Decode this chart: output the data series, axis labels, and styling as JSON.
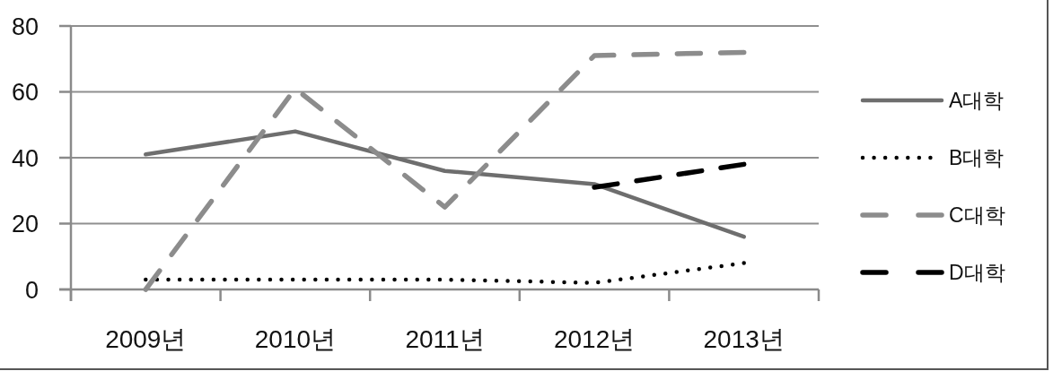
{
  "chart_data": {
    "type": "line",
    "categories": [
      "2009년",
      "2010년",
      "2011년",
      "2012년",
      "2013년"
    ],
    "series": [
      {
        "name": "A대학",
        "color": "#6e6e6e",
        "line_style": "solid",
        "values": [
          41,
          48,
          36,
          32,
          16
        ]
      },
      {
        "name": "B대학",
        "color": "#000000",
        "line_style": "dotted",
        "values": [
          3,
          3,
          3,
          2,
          8
        ]
      },
      {
        "name": "C대학",
        "color": "#8c8c8c",
        "line_style": "dashed",
        "values": [
          0,
          61,
          25,
          71,
          72
        ]
      },
      {
        "name": "D대학",
        "color": "#000000",
        "line_style": "dashed",
        "values": [
          null,
          null,
          null,
          31,
          38
        ]
      }
    ],
    "ylim": [
      0,
      80
    ],
    "yticks": [
      0,
      20,
      40,
      60,
      80
    ],
    "grid": "y",
    "legend": "right"
  }
}
